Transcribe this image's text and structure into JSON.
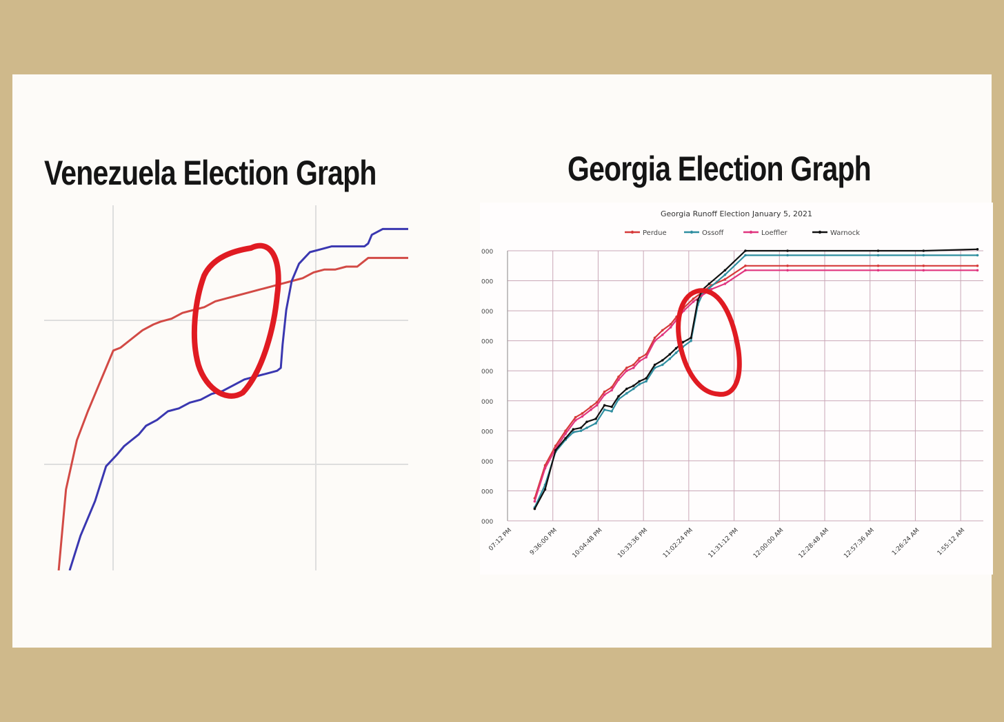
{
  "canvas": {
    "background": "#cfb98b",
    "panel_background": "#fdfbf8"
  },
  "left": {
    "heading": "Venezuela Election Graph",
    "chart_data": {
      "type": "line",
      "title": "",
      "xlabel": "",
      "ylabel": "",
      "grid": true,
      "xlim": [
        0,
        100
      ],
      "ylim": [
        0,
        100
      ],
      "series": [
        {
          "color": "#d24a45",
          "x": [
            4,
            6,
            9,
            12,
            15,
            17,
            19,
            21,
            24,
            27,
            30,
            32,
            35,
            38,
            41,
            44,
            47,
            50,
            53,
            56,
            59,
            62,
            65,
            68,
            71,
            74,
            77,
            80,
            83,
            86,
            89,
            93,
            97,
            100
          ],
          "y": [
            0,
            28,
            45,
            55,
            64,
            70,
            76,
            77,
            80,
            83,
            85,
            86,
            87,
            89,
            90,
            91,
            93,
            94,
            95,
            96,
            97,
            98,
            99,
            100,
            101,
            103,
            104,
            104,
            105,
            105,
            108,
            108,
            108,
            108
          ]
        },
        {
          "color": "#3a37b0",
          "x": [
            7,
            10,
            14,
            17,
            20,
            22,
            24,
            26,
            28,
            31,
            34,
            37,
            40,
            43,
            46,
            49,
            52,
            55,
            58,
            61,
            64,
            65,
            65.5,
            66.5,
            68,
            70,
            73,
            76,
            79,
            82,
            85,
            88,
            89,
            90,
            93,
            97,
            100
          ],
          "y": [
            0,
            12,
            24,
            36,
            40,
            43,
            45,
            47,
            50,
            52,
            55,
            56,
            58,
            59,
            61,
            62,
            64,
            66,
            67,
            68,
            69,
            70,
            78,
            90,
            100,
            106,
            110,
            111,
            112,
            112,
            112,
            112,
            113,
            116,
            118,
            118,
            118
          ]
        }
      ]
    }
  },
  "right": {
    "heading": "Georgia Election Graph",
    "chart_data": {
      "type": "line",
      "title": "Georgia Runoff Election January 5, 2021",
      "legend_position": "top",
      "grid": true,
      "y_tick_labels": [
        "000",
        "000",
        "000",
        "000",
        "000",
        "000",
        "000",
        "000",
        "000",
        "000"
      ],
      "x_tick_labels": [
        "07:12 PM",
        "9:36:00 PM",
        "10:04:48 PM",
        "10:33:36 PM",
        "11:02:24 PM",
        "11:31:12 PM",
        "12:00:00 AM",
        "12:28:48 AM",
        "12:57:36 AM",
        "1:26:24 AM",
        "1:55:12 AM"
      ],
      "xlim": [
        0,
        10.5
      ],
      "ylim": [
        0,
        9
      ],
      "series": [
        {
          "name": "Perdue",
          "color": "#d63a3a",
          "x": [
            0.6,
            0.83,
            1.06,
            1.28,
            1.5,
            1.65,
            1.84,
            1.97,
            2.14,
            2.3,
            2.45,
            2.63,
            2.78,
            2.91,
            3.06,
            3.25,
            3.42,
            3.6,
            3.73,
            3.89,
            4.1,
            4.28,
            4.5,
            4.8,
            5.25,
            6.18,
            8.18,
            9.18,
            10.37
          ],
          "y": [
            0.75,
            1.85,
            2.5,
            3.0,
            3.45,
            3.58,
            3.8,
            3.95,
            4.3,
            4.45,
            4.8,
            5.1,
            5.2,
            5.42,
            5.55,
            6.1,
            6.35,
            6.55,
            6.8,
            7.1,
            7.4,
            7.6,
            7.85,
            8.05,
            8.5,
            8.5,
            8.5,
            8.5,
            8.5
          ]
        },
        {
          "name": "Ossoff",
          "color": "#2f8ea0",
          "x": [
            0.6,
            0.83,
            1.06,
            1.28,
            1.45,
            1.62,
            1.75,
            1.95,
            2.14,
            2.3,
            2.45,
            2.63,
            2.78,
            2.91,
            3.06,
            3.25,
            3.42,
            3.58,
            3.72,
            3.87,
            4.05,
            4.2,
            4.3,
            4.45,
            4.8,
            5.25,
            6.18,
            8.18,
            9.18,
            10.37
          ],
          "y": [
            0.45,
            1.2,
            2.3,
            2.7,
            2.95,
            3.0,
            3.1,
            3.25,
            3.7,
            3.65,
            4.05,
            4.25,
            4.4,
            4.55,
            4.65,
            5.1,
            5.2,
            5.4,
            5.6,
            5.8,
            6.0,
            7.2,
            7.55,
            7.75,
            8.2,
            8.85,
            8.85,
            8.85,
            8.85,
            8.85
          ]
        },
        {
          "name": "Loeffler",
          "color": "#e0357f",
          "x": [
            0.6,
            0.83,
            1.06,
            1.28,
            1.5,
            1.65,
            1.84,
            1.97,
            2.14,
            2.3,
            2.45,
            2.63,
            2.78,
            2.91,
            3.06,
            3.25,
            3.42,
            3.6,
            3.73,
            3.89,
            4.1,
            4.28,
            4.5,
            4.8,
            5.25,
            6.18,
            8.18,
            9.18,
            10.37
          ],
          "y": [
            0.65,
            1.75,
            2.4,
            2.9,
            3.35,
            3.48,
            3.7,
            3.85,
            4.2,
            4.35,
            4.7,
            5.0,
            5.1,
            5.32,
            5.45,
            6.0,
            6.2,
            6.45,
            6.7,
            7.0,
            7.3,
            7.5,
            7.72,
            7.9,
            8.35,
            8.35,
            8.35,
            8.35,
            8.35
          ]
        },
        {
          "name": "Warnock",
          "color": "#111111",
          "x": [
            0.6,
            0.83,
            1.06,
            1.28,
            1.45,
            1.62,
            1.75,
            1.95,
            2.14,
            2.3,
            2.45,
            2.63,
            2.78,
            2.91,
            3.06,
            3.25,
            3.42,
            3.58,
            3.72,
            3.87,
            4.05,
            4.2,
            4.3,
            4.45,
            4.8,
            5.25,
            6.18,
            8.18,
            9.18,
            10.37
          ],
          "y": [
            0.4,
            1.05,
            2.35,
            2.75,
            3.05,
            3.1,
            3.3,
            3.4,
            3.85,
            3.8,
            4.15,
            4.4,
            4.5,
            4.65,
            4.75,
            5.2,
            5.35,
            5.55,
            5.75,
            5.95,
            6.1,
            7.35,
            7.7,
            7.9,
            8.35,
            9.0,
            9.0,
            9.0,
            9.0,
            9.05
          ]
        }
      ]
    }
  }
}
